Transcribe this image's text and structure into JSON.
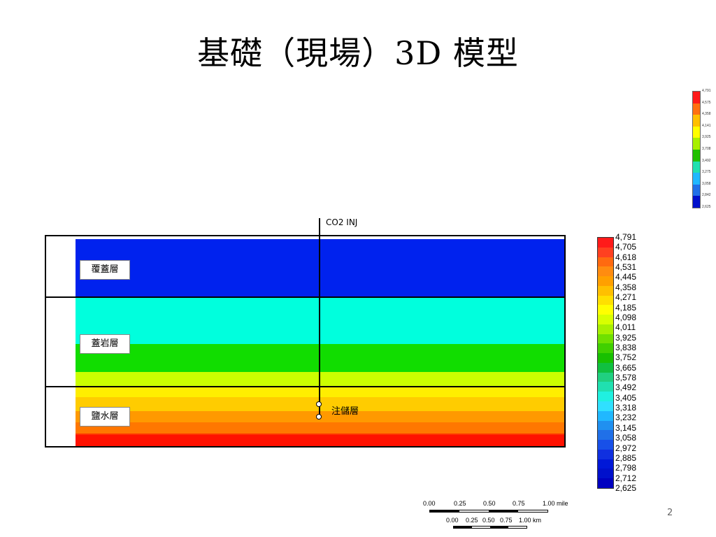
{
  "slide": {
    "title": "基礎（現場）3D 模型",
    "page_number": "2"
  },
  "model": {
    "layers": [
      {
        "name": "覆蓋層"
      },
      {
        "name": "蓋岩層"
      },
      {
        "name": "鹽水層"
      }
    ],
    "well": {
      "name": "CO2 INJ",
      "perforation_label": "注儲層"
    },
    "band_colors": [
      "#0022ee",
      "#00ffdd",
      "#11dd00",
      "#ccff00",
      "#ffee00",
      "#ffcc00",
      "#ff9900",
      "#ff7700",
      "#ff3300",
      "#ff1100"
    ]
  },
  "colorbar": {
    "values": [
      "4,791",
      "4,705",
      "4,618",
      "4,531",
      "4,445",
      "4,358",
      "4,271",
      "4,185",
      "4,098",
      "4,011",
      "3,925",
      "3,838",
      "3,752",
      "3,665",
      "3,578",
      "3,492",
      "3,405",
      "3,318",
      "3,232",
      "3,145",
      "3,058",
      "2,972",
      "2,885",
      "2,798",
      "2,712",
      "2,625"
    ],
    "colors": [
      "#ff1a1a",
      "#ff4020",
      "#ff6a10",
      "#ff8c10",
      "#ffa000",
      "#ffc000",
      "#ffe000",
      "#ffff00",
      "#d8ff00",
      "#a8f000",
      "#70e000",
      "#40d000",
      "#18c000",
      "#10c040",
      "#20d080",
      "#20e0b0",
      "#20f0e0",
      "#30e0ff",
      "#20b8ff",
      "#2090f0",
      "#2070e8",
      "#1850e8",
      "#1030e0",
      "#0018d8",
      "#0010cc",
      "#0000c0"
    ]
  },
  "colorbar_small": {
    "values": [
      "4,791",
      "4,575",
      "4,358",
      "4,141",
      "3,925",
      "3,708",
      "3,492",
      "3,275",
      "3,058",
      "2,842",
      "2,625"
    ],
    "colors": [
      "#ff1a1a",
      "#ff7010",
      "#ffc000",
      "#ffff00",
      "#a8f000",
      "#20c000",
      "#20e0b0",
      "#20b8ff",
      "#2070e8",
      "#0010cc"
    ]
  },
  "scale_bar": {
    "mile_labels": [
      "0.00",
      "0.25",
      "0.50",
      "0.75",
      "1.00 mile"
    ],
    "km_labels": [
      "0.00",
      "0.25",
      "0.50",
      "0.75",
      "1.00 km"
    ]
  }
}
